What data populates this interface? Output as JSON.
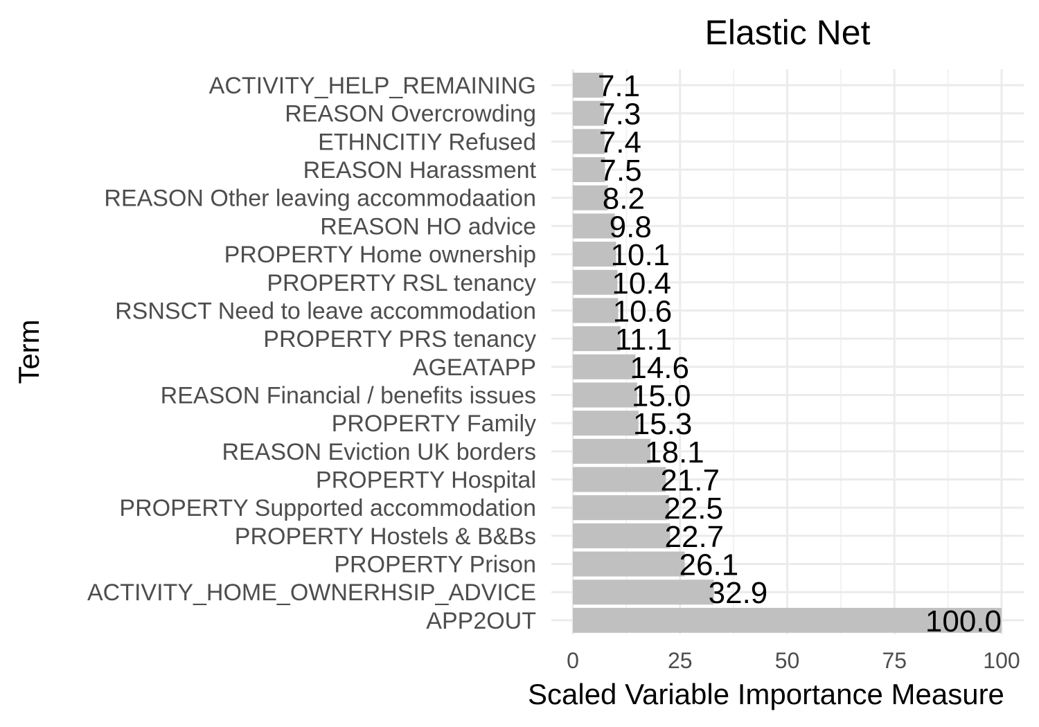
{
  "chart_data": {
    "type": "bar",
    "orientation": "horizontal",
    "title": "Elastic Net",
    "xlabel": "Scaled Variable Importance Measure",
    "ylabel": "Term",
    "xlim": [
      0,
      100
    ],
    "xticks": [
      "0",
      "25",
      "50",
      "75",
      "100"
    ],
    "grid": true,
    "bar_color": "#c0c0c0",
    "categories": [
      "ACTIVITY_HELP_REMAINING",
      "REASON Overcrowding",
      "ETHNCITIY Refused",
      "REASON Harassment",
      "REASON Other leaving accommodaation",
      "REASON HO advice",
      "PROPERTY Home ownership",
      "PROPERTY RSL tenancy",
      "RSNSCT Need to leave accommodation",
      "PROPERTY PRS tenancy",
      "AGEATAPP",
      "REASON Financial / benefits issues",
      "PROPERTY Family",
      "REASON Eviction UK borders",
      "PROPERTY Hospital",
      "PROPERTY Supported accommodation",
      "PROPERTY Hostels & B&Bs",
      "PROPERTY Prison",
      "ACTIVITY_HOME_OWNERHSIP_ADVICE",
      "APP2OUT"
    ],
    "values": [
      7.1,
      7.3,
      7.4,
      7.5,
      8.2,
      9.8,
      10.1,
      10.4,
      10.6,
      11.1,
      14.6,
      15.0,
      15.3,
      18.1,
      21.7,
      22.5,
      22.7,
      26.1,
      32.9,
      100.0
    ],
    "value_labels": [
      "7.1",
      "7.3",
      "7.4",
      "7.5",
      "8.2",
      "9.8",
      "10.1",
      "10.4",
      "10.6",
      "11.1",
      "14.6",
      "15.0",
      "15.3",
      "18.1",
      "21.7",
      "22.5",
      "22.7",
      "26.1",
      "32.9",
      "100.0"
    ]
  }
}
